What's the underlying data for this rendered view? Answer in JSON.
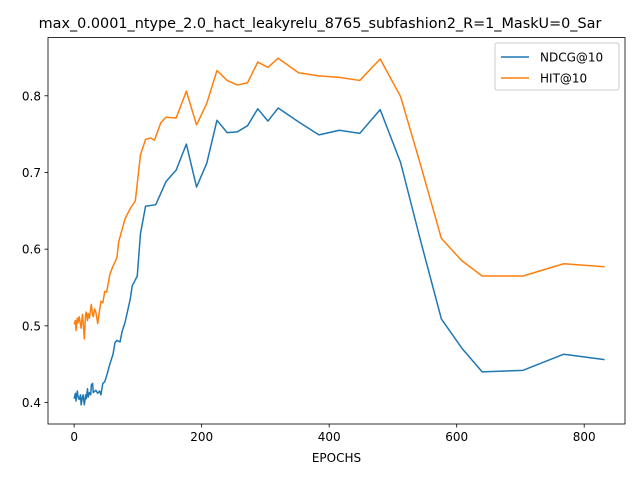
{
  "chart_data": {
    "type": "line",
    "title": "max_0.0001_ntype_2.0_hact_leakyrelu_8765_subfashion2_R=1_MaskU=0_Sar",
    "xlabel": "EPOCHS",
    "ylabel": "",
    "xlim": [
      -41,
      864
    ],
    "ylim": [
      0.372,
      0.876
    ],
    "xticks": [
      0,
      200,
      400,
      600,
      800
    ],
    "yticks": [
      0.4,
      0.5,
      0.6,
      0.7,
      0.8
    ],
    "xtick_labels": [
      "0",
      "200",
      "400",
      "600",
      "800"
    ],
    "ytick_labels": [
      "0.4",
      "0.5",
      "0.6",
      "0.7",
      "0.8"
    ],
    "grid": false,
    "legend_position": "top-right",
    "series": [
      {
        "name": "NDCG@10",
        "color": "#1f77b4",
        "points": [
          [
            0,
            0.405
          ],
          [
            2,
            0.412
          ],
          [
            3,
            0.402
          ],
          [
            5,
            0.415
          ],
          [
            6,
            0.408
          ],
          [
            8,
            0.404
          ],
          [
            10,
            0.41
          ],
          [
            11,
            0.397
          ],
          [
            13,
            0.407
          ],
          [
            14,
            0.41
          ],
          [
            16,
            0.397
          ],
          [
            18,
            0.41
          ],
          [
            19,
            0.405
          ],
          [
            21,
            0.418
          ],
          [
            22,
            0.407
          ],
          [
            24,
            0.413
          ],
          [
            26,
            0.41
          ],
          [
            27,
            0.423
          ],
          [
            29,
            0.425
          ],
          [
            30,
            0.413
          ],
          [
            34,
            0.416
          ],
          [
            37,
            0.412
          ],
          [
            40,
            0.415
          ],
          [
            42,
            0.41
          ],
          [
            45,
            0.425
          ],
          [
            48,
            0.427
          ],
          [
            51,
            0.435
          ],
          [
            56,
            0.45
          ],
          [
            61,
            0.463
          ],
          [
            64,
            0.478
          ],
          [
            67,
            0.481
          ],
          [
            72,
            0.479
          ],
          [
            75,
            0.492
          ],
          [
            80,
            0.505
          ],
          [
            84,
            0.52
          ],
          [
            88,
            0.535
          ],
          [
            91,
            0.552
          ],
          [
            96,
            0.56
          ],
          [
            99,
            0.565
          ],
          [
            104,
            0.62
          ],
          [
            112,
            0.656
          ],
          [
            128,
            0.658
          ],
          [
            144,
            0.688
          ],
          [
            160,
            0.703
          ],
          [
            176,
            0.737
          ],
          [
            192,
            0.681
          ],
          [
            208,
            0.712
          ],
          [
            224,
            0.768
          ],
          [
            240,
            0.752
          ],
          [
            256,
            0.753
          ],
          [
            272,
            0.761
          ],
          [
            288,
            0.783
          ],
          [
            304,
            0.767
          ],
          [
            320,
            0.784
          ],
          [
            352,
            0.766
          ],
          [
            384,
            0.749
          ],
          [
            416,
            0.755
          ],
          [
            448,
            0.751
          ],
          [
            480,
            0.782
          ],
          [
            512,
            0.713
          ],
          [
            544,
            0.609
          ],
          [
            576,
            0.509
          ],
          [
            608,
            0.471
          ],
          [
            640,
            0.44
          ],
          [
            704,
            0.442
          ],
          [
            768,
            0.463
          ],
          [
            832,
            0.456
          ]
        ]
      },
      {
        "name": "HIT@10",
        "color": "#ff7f0e",
        "points": [
          [
            0,
            0.502
          ],
          [
            2,
            0.507
          ],
          [
            3,
            0.494
          ],
          [
            5,
            0.51
          ],
          [
            6,
            0.504
          ],
          [
            8,
            0.512
          ],
          [
            10,
            0.501
          ],
          [
            11,
            0.497
          ],
          [
            13,
            0.515
          ],
          [
            14,
            0.506
          ],
          [
            16,
            0.483
          ],
          [
            18,
            0.515
          ],
          [
            19,
            0.518
          ],
          [
            21,
            0.507
          ],
          [
            22,
            0.516
          ],
          [
            24,
            0.51
          ],
          [
            26,
            0.523
          ],
          [
            27,
            0.528
          ],
          [
            29,
            0.514
          ],
          [
            30,
            0.512
          ],
          [
            32,
            0.522
          ],
          [
            34,
            0.518
          ],
          [
            37,
            0.503
          ],
          [
            40,
            0.521
          ],
          [
            42,
            0.532
          ],
          [
            45,
            0.53
          ],
          [
            48,
            0.545
          ],
          [
            51,
            0.544
          ],
          [
            56,
            0.567
          ],
          [
            61,
            0.578
          ],
          [
            64,
            0.583
          ],
          [
            67,
            0.589
          ],
          [
            70,
            0.61
          ],
          [
            75,
            0.625
          ],
          [
            80,
            0.64
          ],
          [
            88,
            0.653
          ],
          [
            96,
            0.663
          ],
          [
            104,
            0.723
          ],
          [
            112,
            0.743
          ],
          [
            120,
            0.745
          ],
          [
            126,
            0.742
          ],
          [
            136,
            0.765
          ],
          [
            144,
            0.772
          ],
          [
            160,
            0.771
          ],
          [
            176,
            0.806
          ],
          [
            192,
            0.762
          ],
          [
            208,
            0.79
          ],
          [
            224,
            0.833
          ],
          [
            240,
            0.82
          ],
          [
            256,
            0.814
          ],
          [
            272,
            0.817
          ],
          [
            288,
            0.844
          ],
          [
            304,
            0.837
          ],
          [
            320,
            0.849
          ],
          [
            352,
            0.83
          ],
          [
            384,
            0.826
          ],
          [
            416,
            0.824
          ],
          [
            448,
            0.82
          ],
          [
            480,
            0.848
          ],
          [
            512,
            0.799
          ],
          [
            544,
            0.708
          ],
          [
            576,
            0.614
          ],
          [
            608,
            0.585
          ],
          [
            640,
            0.565
          ],
          [
            704,
            0.565
          ],
          [
            768,
            0.581
          ],
          [
            832,
            0.577
          ]
        ]
      }
    ]
  }
}
